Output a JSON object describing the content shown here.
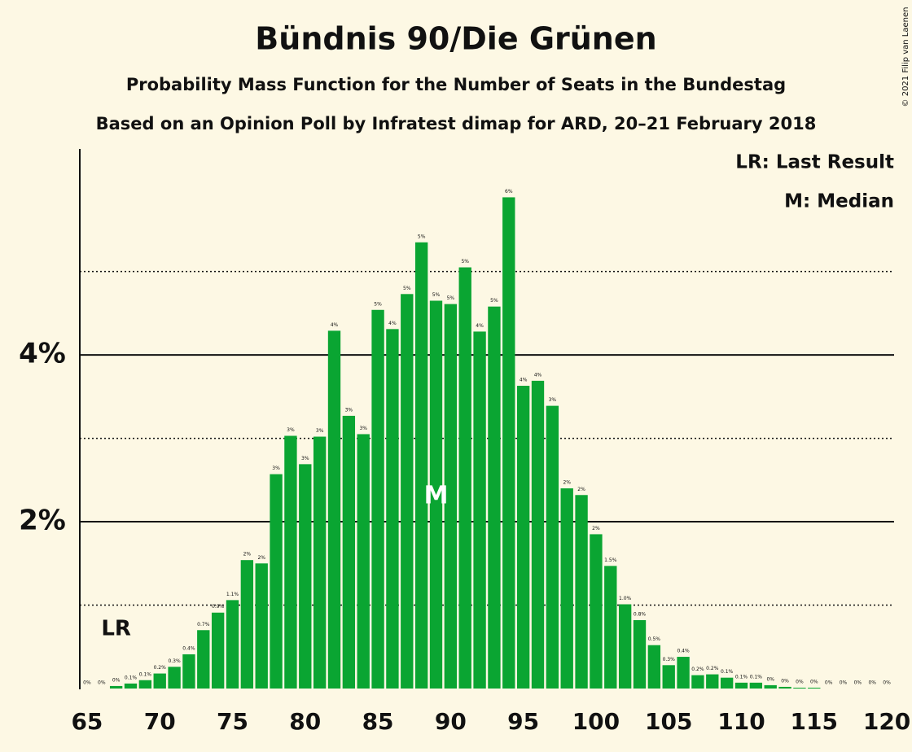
{
  "chart_data": {
    "type": "bar",
    "title": "Bündnis 90/Die Grünen",
    "subtitle": "Probability Mass Function for the Number of Seats in the Bundestag",
    "subtitle2": "Based on an Opinion Poll by Infratest dimap for ARD, 20–21 February 2018",
    "copyright": "© 2021 Filip van Laenen",
    "legend": [
      "LR: Last Result",
      "M: Median"
    ],
    "last_result": {
      "x": 67,
      "label": "LR"
    },
    "median": {
      "x": 89,
      "label": "M"
    },
    "color": "#0aa532",
    "x": [
      65,
      66,
      67,
      68,
      69,
      70,
      71,
      72,
      73,
      74,
      75,
      76,
      77,
      78,
      79,
      80,
      81,
      82,
      83,
      84,
      85,
      86,
      87,
      88,
      89,
      90,
      91,
      92,
      93,
      94,
      95,
      96,
      97,
      98,
      99,
      100,
      101,
      102,
      103,
      104,
      105,
      106,
      107,
      108,
      109,
      110,
      111,
      112,
      113,
      114,
      115,
      116,
      117,
      118,
      119,
      120
    ],
    "values": [
      0,
      0,
      0.03,
      0.06,
      0.1,
      0.18,
      0.26,
      0.41,
      0.7,
      0.91,
      1.06,
      1.54,
      1.5,
      2.57,
      3.03,
      2.69,
      3.02,
      4.29,
      3.27,
      3.05,
      4.54,
      4.31,
      4.73,
      5.35,
      4.65,
      4.61,
      5.05,
      4.28,
      4.58,
      5.89,
      3.63,
      3.69,
      3.39,
      2.4,
      2.32,
      1.85,
      1.47,
      1.01,
      0.82,
      0.52,
      0.28,
      0.38,
      0.16,
      0.17,
      0.13,
      0.07,
      0.07,
      0.04,
      0.02,
      0.01,
      0.01,
      0,
      0,
      0,
      0,
      0
    ],
    "value_labels": [
      "0%",
      "0%",
      "0%",
      "0.1%",
      "0.1%",
      "0.2%",
      "0.3%",
      "0.4%",
      "0.7%",
      "0.9%",
      "1.1%",
      "2%",
      "2%",
      "3%",
      "3%",
      "3%",
      "3%",
      "4%",
      "3%",
      "3%",
      "5%",
      "4%",
      "5%",
      "5%",
      "5%",
      "5%",
      "5%",
      "4%",
      "5%",
      "6%",
      "4%",
      "4%",
      "3%",
      "2%",
      "2%",
      "2%",
      "1.5%",
      "1.0%",
      "0.8%",
      "0.5%",
      "0.3%",
      "0.4%",
      "0.2%",
      "0.2%",
      "0.1%",
      "0.1%",
      "0.1%",
      "0%",
      "0%",
      "0%",
      "0%",
      "0%",
      "0%",
      "0%",
      "0%",
      "0%"
    ],
    "xlim": [
      64.5,
      120.5
    ],
    "xticks": [
      65,
      70,
      75,
      80,
      85,
      90,
      95,
      100,
      105,
      110,
      115,
      120
    ],
    "ylim": [
      0,
      6.47
    ],
    "yticks": [
      {
        "value": 2,
        "label": "2%"
      },
      {
        "value": 4,
        "label": "4%"
      }
    ],
    "yminor": [
      1,
      3,
      5
    ],
    "grid": true
  }
}
